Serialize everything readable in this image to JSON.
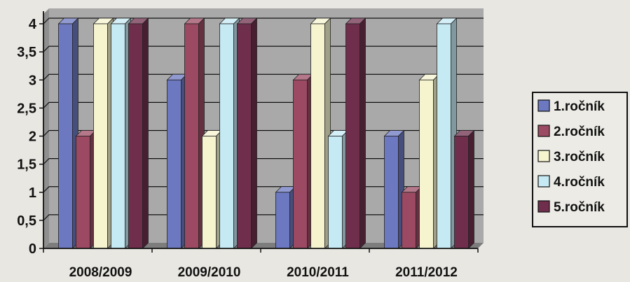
{
  "chart_data": {
    "type": "bar",
    "categories": [
      "2008/2009",
      "2009/2010",
      "2010/2011",
      "2011/2012"
    ],
    "series": [
      {
        "name": "1.ročník",
        "values": [
          4,
          3,
          1,
          2
        ],
        "color": "#6c78c0"
      },
      {
        "name": "2.ročník",
        "values": [
          2,
          4,
          3,
          1
        ],
        "color": "#9c4a63"
      },
      {
        "name": "3.ročník",
        "values": [
          4,
          2,
          4,
          3
        ],
        "color": "#f6f4cf"
      },
      {
        "name": "4.ročník",
        "values": [
          4,
          4,
          2,
          4
        ],
        "color": "#c6eaf4"
      },
      {
        "name": "5.ročník",
        "values": [
          4,
          4,
          4,
          2
        ],
        "color": "#6f2f4c"
      }
    ],
    "yticks": [
      "0",
      "0,5",
      "1",
      "1,5",
      "2",
      "2,5",
      "3",
      "3,5",
      "4"
    ],
    "ylim": [
      0,
      4
    ],
    "grid": true,
    "legend": "right",
    "title": "",
    "xlabel": "",
    "ylabel": ""
  },
  "colors": {
    "plot_background": "#a9a9a9",
    "page_background": "#e9e7e2",
    "gridline": "#111111"
  }
}
